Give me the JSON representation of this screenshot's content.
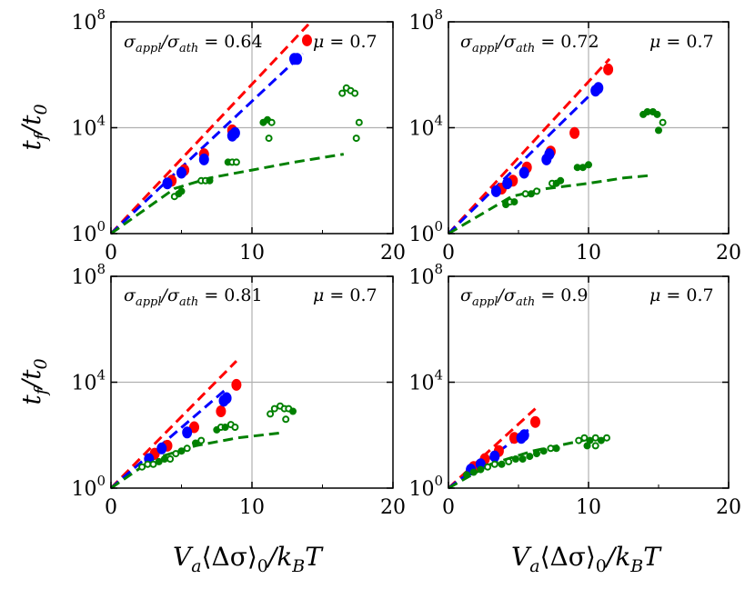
{
  "chart_data": [
    {
      "type": "scatter",
      "panel": "top-left",
      "annotation": {
        "ratio_label": "σ_appl/σ_ath = 0.64",
        "ratio_value": "0.64",
        "mu_value": "0.7"
      },
      "xlim": [
        0,
        20
      ],
      "ylim_log10": [
        0,
        8
      ],
      "x_ticks": [
        "0",
        "10",
        "20"
      ],
      "y_ticks": [
        {
          "base": "10",
          "exp": "0"
        },
        {
          "base": "10",
          "exp": "4"
        },
        {
          "base": "10",
          "exp": "8"
        }
      ],
      "ylabel": "t_f/t_0",
      "dashed_lines": [
        {
          "color": "#ff0000",
          "x": [
            0,
            14.0
          ],
          "log10_y": [
            0,
            7.9
          ]
        },
        {
          "color": "#0000ff",
          "x": [
            0,
            13.6
          ],
          "log10_y": [
            0,
            6.8
          ]
        },
        {
          "color": "#008000",
          "x": [
            0,
            4.5,
            7,
            10,
            13,
            16.5
          ],
          "log10_y": [
            0,
            1.7,
            2.1,
            2.4,
            2.7,
            3.0
          ]
        }
      ],
      "series": [
        {
          "name": "red",
          "color": "#ff0000",
          "points": [
            [
              13.9,
              7.3
            ],
            [
              4.3,
              2.0
            ],
            [
              5.2,
              2.4
            ],
            [
              6.6,
              3.0
            ],
            [
              8.6,
              3.9
            ]
          ]
        },
        {
          "name": "blue",
          "color": "#0000ff",
          "points": [
            [
              13.2,
              6.6
            ],
            [
              13.0,
              6.6
            ],
            [
              4.0,
              1.9
            ],
            [
              5.0,
              2.3
            ],
            [
              6.6,
              2.8
            ],
            [
              8.8,
              3.8
            ],
            [
              8.6,
              3.7
            ]
          ]
        },
        {
          "name": "green",
          "color": "#008000",
          "points": [
            [
              4.5,
              1.4
            ],
            [
              4.8,
              1.5
            ],
            [
              5.0,
              1.6
            ],
            [
              6.4,
              2.0
            ],
            [
              6.7,
              2.0
            ],
            [
              7.0,
              2.0
            ],
            [
              8.3,
              2.7
            ],
            [
              8.6,
              2.7
            ],
            [
              8.9,
              2.7
            ],
            [
              10.8,
              4.2
            ],
            [
              11.1,
              4.3
            ],
            [
              11.4,
              4.2
            ],
            [
              11.2,
              3.6
            ],
            [
              16.4,
              5.3
            ],
            [
              16.7,
              5.5
            ],
            [
              17.0,
              5.4
            ],
            [
              17.3,
              5.3
            ],
            [
              17.6,
              4.2
            ],
            [
              17.4,
              3.6
            ]
          ]
        }
      ]
    },
    {
      "type": "scatter",
      "panel": "top-right",
      "annotation": {
        "ratio_label": "σ_appl/σ_ath = 0.72",
        "ratio_value": "0.72",
        "mu_value": "0.7"
      },
      "xlim": [
        0,
        20
      ],
      "ylim_log10": [
        0,
        8
      ],
      "x_ticks": [
        "0",
        "10",
        "20"
      ],
      "y_ticks": [
        {
          "base": "10",
          "exp": "0"
        },
        {
          "base": "10",
          "exp": "4"
        },
        {
          "base": "10",
          "exp": "8"
        }
      ],
      "ylabel": "",
      "dashed_lines": [
        {
          "color": "#ff0000",
          "x": [
            0,
            11.5
          ],
          "log10_y": [
            0,
            6.6
          ]
        },
        {
          "color": "#0000ff",
          "x": [
            0,
            11.0
          ],
          "log10_y": [
            0,
            5.7
          ]
        },
        {
          "color": "#008000",
          "x": [
            0,
            4.5,
            7,
            10,
            12.5,
            14.5
          ],
          "log10_y": [
            0,
            1.4,
            1.7,
            1.9,
            2.1,
            2.2
          ]
        }
      ],
      "series": [
        {
          "name": "red",
          "color": "#ff0000",
          "points": [
            [
              11.4,
              6.2
            ],
            [
              3.8,
              1.7
            ],
            [
              4.6,
              2.0
            ],
            [
              5.6,
              2.5
            ],
            [
              7.3,
              3.1
            ],
            [
              9.0,
              3.8
            ]
          ]
        },
        {
          "name": "blue",
          "color": "#0000ff",
          "points": [
            [
              10.7,
              5.5
            ],
            [
              10.5,
              5.4
            ],
            [
              3.4,
              1.6
            ],
            [
              4.2,
              1.9
            ],
            [
              5.4,
              2.3
            ],
            [
              7.0,
              2.8
            ],
            [
              7.2,
              3.0
            ]
          ]
        },
        {
          "name": "green",
          "color": "#008000",
          "points": [
            [
              4.1,
              1.1
            ],
            [
              4.4,
              1.2
            ],
            [
              4.7,
              1.2
            ],
            [
              5.5,
              1.5
            ],
            [
              5.9,
              1.5
            ],
            [
              6.3,
              1.6
            ],
            [
              7.4,
              1.9
            ],
            [
              7.7,
              1.9
            ],
            [
              8.0,
              2.0
            ],
            [
              9.2,
              2.5
            ],
            [
              9.6,
              2.5
            ],
            [
              10.0,
              2.6
            ],
            [
              13.9,
              4.5
            ],
            [
              14.2,
              4.6
            ],
            [
              14.6,
              4.6
            ],
            [
              14.9,
              4.5
            ],
            [
              15.3,
              4.2
            ],
            [
              15.0,
              3.9
            ]
          ]
        }
      ]
    },
    {
      "type": "scatter",
      "panel": "bottom-left",
      "annotation": {
        "ratio_label": "σ_appl/σ_ath = 0.81",
        "ratio_value": "0.81",
        "mu_value": "0.7"
      },
      "xlim": [
        0,
        20
      ],
      "ylim_log10": [
        0,
        8
      ],
      "x_ticks": [
        "0",
        "10",
        "20"
      ],
      "y_ticks": [
        {
          "base": "10",
          "exp": "0"
        },
        {
          "base": "10",
          "exp": "4"
        },
        {
          "base": "10",
          "exp": "8"
        }
      ],
      "ylabel": "t_f/t_0",
      "xlabel": "V_a⟨Δσ⟩_0/k_BT",
      "dashed_lines": [
        {
          "color": "#ff0000",
          "x": [
            0,
            8.9
          ],
          "log10_y": [
            0,
            4.8
          ]
        },
        {
          "color": "#0000ff",
          "x": [
            0,
            8.3
          ],
          "log10_y": [
            0,
            3.8
          ]
        },
        {
          "color": "#008000",
          "x": [
            0,
            3,
            6,
            9,
            12.3
          ],
          "log10_y": [
            0,
            1.1,
            1.6,
            1.9,
            2.1
          ]
        }
      ],
      "series": [
        {
          "name": "red",
          "color": "#ff0000",
          "points": [
            [
              8.9,
              3.9
            ],
            [
              3.1,
              1.3
            ],
            [
              4.0,
              1.6
            ],
            [
              5.9,
              2.3
            ],
            [
              7.8,
              2.9
            ]
          ]
        },
        {
          "name": "blue",
          "color": "#0000ff",
          "points": [
            [
              8.2,
              3.4
            ],
            [
              8.0,
              3.3
            ],
            [
              2.7,
              1.1
            ],
            [
              3.6,
              1.5
            ],
            [
              5.4,
              2.1
            ]
          ]
        },
        {
          "name": "green",
          "color": "#008000",
          "points": [
            [
              2.2,
              0.8
            ],
            [
              2.6,
              0.9
            ],
            [
              3.0,
              0.9
            ],
            [
              3.4,
              1.0
            ],
            [
              3.8,
              1.1
            ],
            [
              4.2,
              1.1
            ],
            [
              4.6,
              1.3
            ],
            [
              5.0,
              1.4
            ],
            [
              5.4,
              1.5
            ],
            [
              6.0,
              1.7
            ],
            [
              6.4,
              1.8
            ],
            [
              7.5,
              2.2
            ],
            [
              7.8,
              2.3
            ],
            [
              8.1,
              2.3
            ],
            [
              8.5,
              2.4
            ],
            [
              8.8,
              2.3
            ],
            [
              11.3,
              2.8
            ],
            [
              11.6,
              3.0
            ],
            [
              12.0,
              3.1
            ],
            [
              12.3,
              3.0
            ],
            [
              12.6,
              3.0
            ],
            [
              12.9,
              2.9
            ],
            [
              12.4,
              2.6
            ]
          ]
        }
      ]
    },
    {
      "type": "scatter",
      "panel": "bottom-right",
      "annotation": {
        "ratio_label": "σ_appl/σ_ath = 0.9",
        "ratio_value": "0.9",
        "mu_value": "0.7"
      },
      "xlim": [
        0,
        20
      ],
      "ylim_log10": [
        0,
        8
      ],
      "x_ticks": [
        "0",
        "10",
        "20"
      ],
      "y_ticks": [
        {
          "base": "10",
          "exp": "0"
        },
        {
          "base": "10",
          "exp": "4"
        },
        {
          "base": "10",
          "exp": "8"
        }
      ],
      "ylabel": "",
      "xlabel": "V_a⟨Δσ⟩_0/k_BT",
      "dashed_lines": [
        {
          "color": "#ff0000",
          "x": [
            0,
            6.2
          ],
          "log10_y": [
            0,
            3.0
          ]
        },
        {
          "color": "#0000ff",
          "x": [
            0,
            5.7
          ],
          "log10_y": [
            0,
            2.2
          ]
        },
        {
          "color": "#008000",
          "x": [
            0,
            3,
            6,
            10.5
          ],
          "log10_y": [
            0,
            0.9,
            1.4,
            1.9
          ]
        }
      ],
      "series": [
        {
          "name": "red",
          "color": "#ff0000",
          "points": [
            [
              6.2,
              2.5
            ],
            [
              1.8,
              0.8
            ],
            [
              2.6,
              1.1
            ],
            [
              3.6,
              1.4
            ],
            [
              4.7,
              1.9
            ]
          ]
        },
        {
          "name": "blue",
          "color": "#0000ff",
          "points": [
            [
              5.4,
              2.0
            ],
            [
              5.2,
              1.9
            ],
            [
              1.6,
              0.7
            ],
            [
              2.3,
              0.9
            ],
            [
              3.3,
              1.2
            ]
          ]
        },
        {
          "name": "green",
          "color": "#008000",
          "points": [
            [
              1.3,
              0.5
            ],
            [
              1.8,
              0.6
            ],
            [
              2.3,
              0.7
            ],
            [
              2.8,
              0.8
            ],
            [
              3.3,
              0.9
            ],
            [
              3.8,
              0.9
            ],
            [
              4.3,
              1.0
            ],
            [
              4.8,
              1.1
            ],
            [
              5.3,
              1.1
            ],
            [
              5.8,
              1.2
            ],
            [
              6.3,
              1.3
            ],
            [
              6.8,
              1.4
            ],
            [
              7.3,
              1.5
            ],
            [
              7.7,
              1.5
            ],
            [
              9.3,
              1.8
            ],
            [
              9.7,
              1.9
            ],
            [
              10.1,
              1.8
            ],
            [
              10.5,
              1.9
            ],
            [
              10.9,
              1.8
            ],
            [
              11.3,
              1.9
            ],
            [
              9.9,
              1.6
            ],
            [
              10.5,
              1.6
            ]
          ]
        }
      ]
    }
  ],
  "labels": {
    "ylabel_t": "t",
    "ylabel_f": "f",
    "ylabel_slash": "/t",
    "ylabel_0": "0",
    "xlabel_V": "V",
    "xlabel_a": "a",
    "xlabel_mid": "⟨Δσ⟩",
    "xlabel_0": "0",
    "xlabel_slash": "/k",
    "xlabel_B": "B",
    "xlabel_T": "T",
    "sigma": "σ",
    "appl": "appl",
    "ath": "ath",
    "slash": "/",
    "equals": " = ",
    "mu": "μ"
  }
}
